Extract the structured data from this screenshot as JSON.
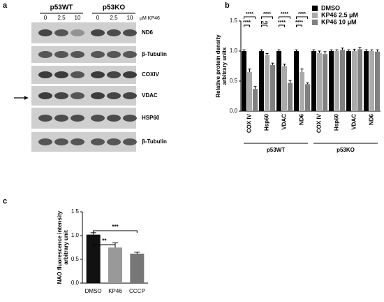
{
  "panel_labels": [
    "a",
    "b",
    "c"
  ],
  "blot": {
    "groups": [
      "p53WT",
      "p53KO"
    ],
    "doses": [
      "0",
      "2.5",
      "10",
      "0",
      "2.5",
      "10"
    ],
    "unit": "µM KP46",
    "bands": [
      "ND6",
      "β-Tubulin",
      "COXIV",
      "VDAC",
      "HSP60",
      "β-Tubulin"
    ]
  },
  "chart_data": [
    {
      "type": "bar",
      "ylabel": [
        "Relative protein density",
        "arbitrary units"
      ],
      "categories": [
        "COX IV",
        "Hsp60",
        "VDAC",
        "ND6",
        "COX IV",
        "Hsp60",
        "VDAC",
        "ND6"
      ],
      "groups": [
        "p53WT",
        "p53KO"
      ],
      "series": [
        {
          "name": "DMSO",
          "color": "#000000",
          "values": [
            1.0,
            1.0,
            1.0,
            1.0,
            1.0,
            1.0,
            1.0,
            1.0
          ],
          "errors": [
            0.02,
            0.02,
            0.02,
            0.02,
            0.02,
            0.02,
            0.02,
            0.02
          ]
        },
        {
          "name": "KP46 2.5 μM",
          "color": "#aaaaaa",
          "values": [
            0.65,
            0.93,
            0.75,
            0.65,
            0.97,
            1.0,
            1.0,
            1.0
          ],
          "errors": [
            0.05,
            0.03,
            0.03,
            0.05,
            0.03,
            0.02,
            0.03,
            0.02
          ]
        },
        {
          "name": "KP46 10 μM",
          "color": "#808080",
          "values": [
            0.37,
            0.77,
            0.47,
            0.45,
            0.95,
            1.02,
            1.03,
            0.99
          ],
          "errors": [
            0.04,
            0.03,
            0.04,
            0.02,
            0.04,
            0.03,
            0.03,
            0.03
          ]
        }
      ],
      "annotations": [
        "****",
        "****",
        "****",
        "n.s",
        "****",
        "****",
        "****",
        "****"
      ],
      "ylim": [
        0,
        1.5
      ],
      "yticks": [
        {
          "value": 0,
          "label": "0.0"
        },
        {
          "value": 0.5,
          "label": "0.5"
        },
        {
          "value": 1.0,
          "label": "1.0"
        },
        {
          "value": 1.5,
          "label": "1.5"
        }
      ],
      "legend": "top-right"
    },
    {
      "type": "bar",
      "ylabel": [
        "NAO fluorescence intensity",
        "arbitrary unit"
      ],
      "categories": [
        "DMSO",
        "KP46",
        "CCCP"
      ],
      "values": [
        1.02,
        0.75,
        0.62
      ],
      "errors": [
        0.04,
        0.1,
        0.03
      ],
      "colors": [
        "#111111",
        "#999999",
        "#777777"
      ],
      "annotations": [
        "**",
        "***"
      ],
      "ylim": [
        0,
        1.5
      ],
      "yticks": [
        {
          "value": 0,
          "label": "0.0"
        },
        {
          "value": 0.5,
          "label": "0.5"
        },
        {
          "value": 1.0,
          "label": "1.0"
        },
        {
          "value": 1.5,
          "label": "1.5"
        }
      ]
    }
  ]
}
